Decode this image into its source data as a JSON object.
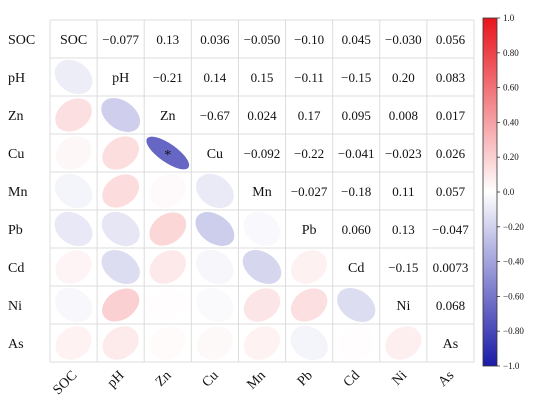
{
  "chart_data": {
    "type": "heatmap",
    "variables": [
      "SOC",
      "pH",
      "Zn",
      "Cu",
      "Mn",
      "Pb",
      "Cd",
      "Ni",
      "As"
    ],
    "matrix": [
      [
        1,
        -0.077,
        0.13,
        0.036,
        -0.05,
        -0.1,
        0.045,
        -0.03,
        0.056
      ],
      [
        -0.077,
        1,
        -0.21,
        0.14,
        0.15,
        -0.11,
        -0.15,
        0.2,
        0.083
      ],
      [
        0.13,
        -0.21,
        1,
        -0.67,
        0.024,
        0.17,
        0.095,
        0.008,
        0.017
      ],
      [
        0.036,
        0.14,
        -0.67,
        1,
        -0.092,
        -0.22,
        -0.041,
        -0.023,
        0.026
      ],
      [
        -0.05,
        0.15,
        0.024,
        -0.092,
        1,
        -0.027,
        -0.18,
        0.11,
        0.057
      ],
      [
        -0.1,
        -0.11,
        0.17,
        -0.22,
        -0.027,
        1,
        0.06,
        0.13,
        -0.047
      ],
      [
        0.045,
        -0.15,
        0.095,
        -0.041,
        -0.18,
        0.06,
        1,
        -0.15,
        0.0073
      ],
      [
        -0.03,
        0.2,
        0.008,
        -0.023,
        0.11,
        0.13,
        -0.15,
        1,
        0.068
      ],
      [
        0.056,
        0.083,
        0.017,
        0.026,
        0.057,
        -0.047,
        0.0073,
        0.068,
        1
      ]
    ],
    "upper_labels": [
      [
        "-0.077",
        "0.13",
        "0.036",
        "-0.050",
        "-0.10",
        "0.045",
        "-0.030",
        "0.056"
      ],
      [
        "-0.21",
        "0.14",
        "0.15",
        "-0.11",
        "-0.15",
        "0.20",
        "0.083"
      ],
      [
        "-0.67",
        "0.024",
        "0.17",
        "0.095",
        "0.008",
        "0.017"
      ],
      [
        "-0.092",
        "-0.22",
        "-0.041",
        "-0.023",
        "0.026"
      ],
      [
        "-0.027",
        "-0.18",
        "0.11",
        "0.057"
      ],
      [
        "0.060",
        "0.13",
        "-0.047"
      ],
      [
        "-0.15",
        "0.0073"
      ],
      [
        "0.068"
      ]
    ],
    "significance": [
      {
        "row": "Cu",
        "col": "Zn",
        "mark": "*"
      }
    ],
    "colorbar": {
      "range": [
        -1.0,
        1.0
      ],
      "ticks": [
        "1.0",
        "0.80",
        "0.60",
        "0.40",
        "0.20",
        "0.0",
        "-0.20",
        "-0.40",
        "-0.60",
        "-0.80",
        "-1.0"
      ],
      "positive_color": "#e8141c",
      "zero_color": "#ffffff",
      "negative_color": "#1a1aa8"
    },
    "grid": true,
    "legend_position": "right"
  }
}
